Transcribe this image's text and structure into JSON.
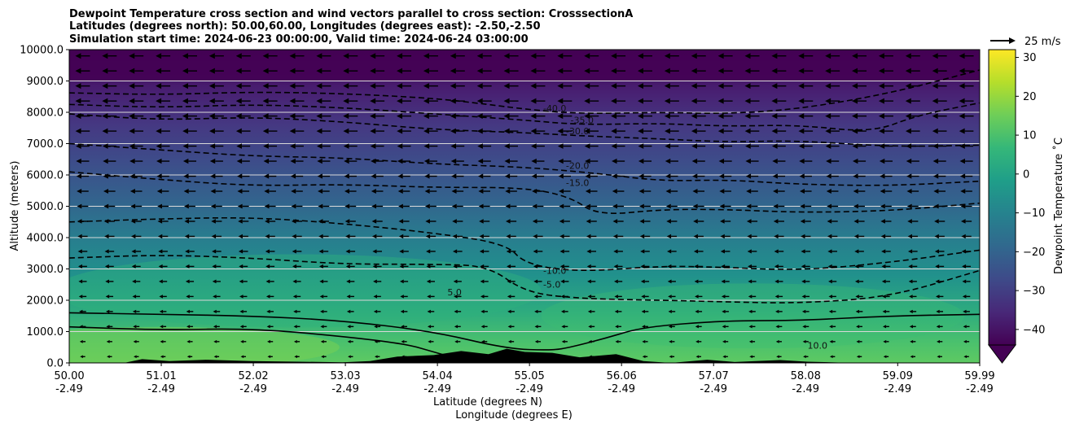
{
  "chart_data": {
    "type": "contour-cross-section",
    "title_lines": [
      "Dewpoint Temperature cross section and wind vectors parallel to cross section: CrosssectionA",
      "Latitudes (degrees north): 50.00,60.00, Longitudes (degrees east): -2.50,-2.50",
      "Simulation start time: 2024-06-23 00:00:00, Valid time: 2024-06-24 03:00:00"
    ],
    "ylabel": "Altitude (meters)",
    "xlabel_lat": "Latitude (degrees N)",
    "xlabel_lon": "Longitude (degrees E)",
    "ylim": [
      0,
      10000
    ],
    "y_ticks": [
      0,
      1000,
      2000,
      3000,
      4000,
      5000,
      6000,
      7000,
      8000,
      9000,
      10000
    ],
    "y_tick_labels": [
      "0.0",
      "1000.0",
      "2000.0",
      "3000.0",
      "4000.0",
      "5000.0",
      "6000.0",
      "7000.0",
      "8000.0",
      "9000.0",
      "10000.0"
    ],
    "xlim": [
      50.0,
      59.99
    ],
    "x_ticks": [
      50.0,
      51.01,
      52.02,
      53.03,
      54.04,
      55.05,
      56.06,
      57.07,
      58.08,
      59.09,
      59.99
    ],
    "x_tick_lat_labels": [
      "50.00",
      "51.01",
      "52.02",
      "53.03",
      "54.04",
      "55.05",
      "56.06",
      "57.07",
      "58.08",
      "59.09",
      "59.99"
    ],
    "x_tick_lon_labels": [
      "-2.49",
      "-2.49",
      "-2.49",
      "-2.49",
      "-2.49",
      "-2.49",
      "-2.49",
      "-2.49",
      "-2.49",
      "-2.49",
      "-2.49"
    ],
    "colorbar": {
      "label": "Dewpoint Temperature ˚C",
      "range": [
        -44,
        32
      ],
      "ticks": [
        -40,
        -30,
        -20,
        -10,
        0,
        10,
        20,
        30
      ],
      "tick_labels": [
        "−40",
        "−30",
        "−20",
        "−10",
        "0",
        "10",
        "20",
        "30"
      ],
      "colors": [
        "#440154",
        "#482878",
        "#3e4a89",
        "#31688e",
        "#26828e",
        "#1f9e89",
        "#35b779",
        "#6ece58",
        "#b5de2b",
        "#fde725"
      ],
      "extend": "min"
    },
    "wind_key": {
      "label": "25 m/s",
      "speed": 25
    },
    "contour_levels": [
      -40,
      -35,
      -30,
      -20,
      -15,
      -10,
      -5,
      5,
      10
    ],
    "contours": [
      {
        "level": -40,
        "label": "-40.0",
        "label_at": [
          55.2,
          8020
        ],
        "points": [
          [
            50.0,
            8620
          ],
          [
            51.0,
            8560
          ],
          [
            52.0,
            8650
          ],
          [
            53.0,
            8600
          ],
          [
            54.0,
            8450
          ],
          [
            54.6,
            8250
          ],
          [
            55.0,
            8100
          ],
          [
            55.6,
            7950
          ],
          [
            56.5,
            8000
          ],
          [
            57.2,
            7950
          ],
          [
            58.0,
            8100
          ],
          [
            59.0,
            8600
          ],
          [
            59.99,
            9350
          ]
        ]
      },
      {
        "level": -35,
        "label": "-35.0",
        "label_at": [
          55.5,
          7650
        ],
        "points": [
          [
            50.0,
            8250
          ],
          [
            51.0,
            8150
          ],
          [
            52.0,
            8250
          ],
          [
            53.0,
            8150
          ],
          [
            54.0,
            7950
          ],
          [
            55.0,
            7750
          ],
          [
            55.6,
            7600
          ],
          [
            56.5,
            7650
          ],
          [
            57.2,
            7550
          ],
          [
            58.0,
            7600
          ],
          [
            58.8,
            7350
          ],
          [
            59.3,
            7900
          ],
          [
            59.99,
            8300
          ]
        ]
      },
      {
        "level": -30,
        "label": "-30.0",
        "label_at": [
          55.45,
          7300
        ],
        "points": [
          [
            50.0,
            7950
          ],
          [
            51.0,
            7750
          ],
          [
            52.0,
            7850
          ],
          [
            53.0,
            7700
          ],
          [
            54.0,
            7450
          ],
          [
            55.0,
            7350
          ],
          [
            55.6,
            7250
          ],
          [
            56.5,
            7150
          ],
          [
            57.2,
            7050
          ],
          [
            58.0,
            7100
          ],
          [
            59.0,
            6900
          ],
          [
            59.99,
            6950
          ]
        ]
      },
      {
        "level": -20,
        "label": "-20.0",
        "label_at": [
          55.45,
          6200
        ],
        "points": [
          [
            50.0,
            7000
          ],
          [
            51.0,
            6800
          ],
          [
            52.0,
            6600
          ],
          [
            53.0,
            6550
          ],
          [
            54.0,
            6350
          ],
          [
            55.0,
            6250
          ],
          [
            55.8,
            6050
          ],
          [
            56.5,
            5800
          ],
          [
            57.2,
            5850
          ],
          [
            58.0,
            5700
          ],
          [
            59.0,
            5650
          ],
          [
            59.99,
            5800
          ]
        ]
      },
      {
        "level": -15,
        "label": "-15.0",
        "label_at": [
          55.45,
          5650
        ],
        "points": [
          [
            50.0,
            6100
          ],
          [
            51.0,
            5850
          ],
          [
            52.0,
            5650
          ],
          [
            53.0,
            5700
          ],
          [
            54.0,
            5600
          ],
          [
            55.0,
            5600
          ],
          [
            55.5,
            5300
          ],
          [
            55.8,
            4700
          ],
          [
            56.5,
            4900
          ],
          [
            57.2,
            4900
          ],
          [
            58.0,
            4800
          ],
          [
            59.0,
            4850
          ],
          [
            59.99,
            5100
          ]
        ]
      },
      {
        "level": -10,
        "label": "-10.0",
        "label_at": [
          55.2,
          2850
        ],
        "points": [
          [
            50.0,
            4500
          ],
          [
            51.0,
            4600
          ],
          [
            52.0,
            4650
          ],
          [
            53.0,
            4450
          ],
          [
            54.0,
            4150
          ],
          [
            54.8,
            3800
          ],
          [
            55.0,
            3150
          ],
          [
            55.6,
            2900
          ],
          [
            56.5,
            3100
          ],
          [
            57.2,
            3050
          ],
          [
            58.0,
            2950
          ],
          [
            59.0,
            3200
          ],
          [
            59.99,
            3600
          ]
        ]
      },
      {
        "level": -5,
        "label": "-5.0",
        "label_at": [
          55.2,
          2400
        ],
        "points": [
          [
            50.0,
            3350
          ],
          [
            51.0,
            3450
          ],
          [
            52.0,
            3350
          ],
          [
            53.0,
            3150
          ],
          [
            54.0,
            3150
          ],
          [
            54.6,
            3100
          ],
          [
            55.0,
            2250
          ],
          [
            55.6,
            2050
          ],
          [
            56.5,
            2000
          ],
          [
            57.2,
            1950
          ],
          [
            58.0,
            1900
          ],
          [
            59.0,
            2100
          ],
          [
            59.99,
            2950
          ]
        ]
      },
      {
        "level": 5,
        "label": "5.0",
        "label_at": [
          54.15,
          2150
        ],
        "points": [
          [
            50.0,
            1600
          ],
          [
            51.0,
            1550
          ],
          [
            52.0,
            1500
          ],
          [
            53.0,
            1350
          ],
          [
            54.0,
            1000
          ],
          [
            54.8,
            450
          ],
          [
            55.3,
            400
          ],
          [
            55.5,
            500
          ],
          [
            55.9,
            800
          ],
          [
            56.3,
            1150
          ],
          [
            57.2,
            1350
          ],
          [
            58.0,
            1350
          ],
          [
            59.0,
            1500
          ],
          [
            59.99,
            1550
          ]
        ]
      },
      {
        "level": 10,
        "label": "10.0",
        "label_at": [
          58.1,
          450
        ],
        "points": [
          [
            50.0,
            1150
          ],
          [
            51.0,
            1050
          ],
          [
            52.0,
            1100
          ],
          [
            53.0,
            850
          ],
          [
            53.7,
            600
          ],
          [
            54.0,
            350
          ],
          [
            54.3,
            100
          ]
        ]
      }
    ],
    "terrain_m": [
      [
        50.0,
        0
      ],
      [
        50.6,
        0
      ],
      [
        50.8,
        120
      ],
      [
        51.1,
        60
      ],
      [
        51.5,
        100
      ],
      [
        52.0,
        60
      ],
      [
        52.5,
        40
      ],
      [
        53.0,
        20
      ],
      [
        53.3,
        60
      ],
      [
        53.6,
        200
      ],
      [
        54.0,
        250
      ],
      [
        54.3,
        380
      ],
      [
        54.6,
        280
      ],
      [
        54.8,
        450
      ],
      [
        55.0,
        350
      ],
      [
        55.3,
        320
      ],
      [
        55.6,
        180
      ],
      [
        56.0,
        280
      ],
      [
        56.3,
        60
      ],
      [
        56.6,
        0
      ],
      [
        57.0,
        100
      ],
      [
        57.3,
        30
      ],
      [
        57.8,
        90
      ],
      [
        58.1,
        40
      ],
      [
        58.6,
        0
      ],
      [
        59.99,
        0
      ]
    ]
  }
}
